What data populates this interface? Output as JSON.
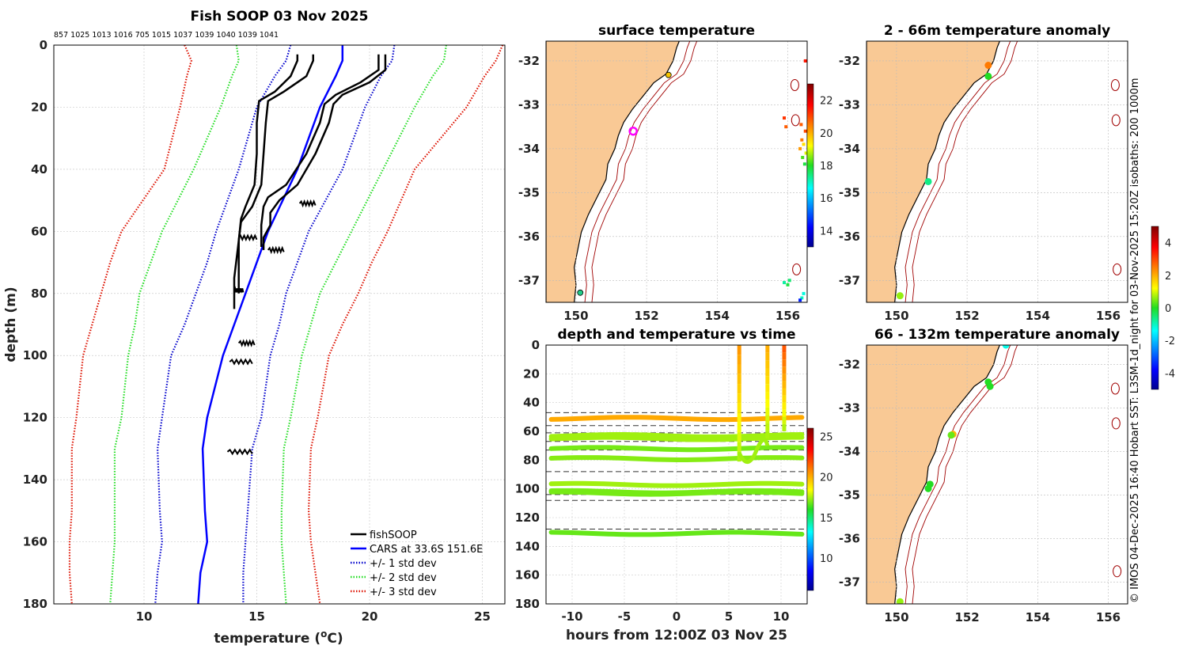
{
  "title": "Fish SOOP 03 Nov 2025",
  "depth_ids": "857 1025 1013 1016 705 1015 1037 1039 1040 1039 1041",
  "side_text": "© IMOS 04-Dec-2025 16:40 Hobart SST: L3SM-1d_night for 03-Nov-2025 15:20Z isobaths: 200  1000m",
  "colors": {
    "fish": "#000000",
    "cars": "#0000ff",
    "sd1": "#0000cc",
    "sd2": "#22dd22",
    "sd3": "#dd1100",
    "land": "#f9c995",
    "isobath": "#a00000"
  },
  "chart_data": [
    {
      "type": "line",
      "name": "profile",
      "xlabel": "temperature (°C)",
      "ylabel": "depth (m)",
      "xlim": [
        6,
        26
      ],
      "ylim": [
        180,
        0
      ],
      "xticks": [
        10,
        15,
        20,
        25
      ],
      "yticks": [
        0,
        20,
        40,
        60,
        80,
        100,
        120,
        140,
        160,
        180
      ],
      "legend": [
        "fishSOOP",
        "CARS at 33.6S 151.6E",
        "+/- 1 std dev",
        "+/- 2 std dev",
        "+/- 3 std dev"
      ],
      "legend_position": "bottom-right",
      "cars": {
        "temp": [
          18.8,
          18.8,
          18.5,
          17.8,
          16.8,
          15.5,
          15.0,
          14.5,
          14.0,
          13.5,
          12.8,
          12.6,
          12.7,
          12.8,
          12.5,
          12.4
        ],
        "depth": [
          0,
          5,
          10,
          20,
          40,
          60,
          70,
          80,
          90,
          100,
          120,
          130,
          150,
          160,
          170,
          180
        ]
      },
      "sd1_low": {
        "temp": [
          16.5,
          16.3,
          15.8,
          15.0,
          14.2,
          13.2,
          12.8,
          12.3,
          11.8,
          11.2,
          10.8,
          10.6,
          10.7,
          10.8,
          10.6,
          10.5
        ],
        "depth": [
          0,
          5,
          10,
          20,
          40,
          60,
          70,
          80,
          90,
          100,
          120,
          130,
          150,
          160,
          170,
          180
        ]
      },
      "sd1_high": {
        "temp": [
          21.1,
          21.0,
          20.5,
          19.8,
          18.8,
          17.3,
          16.8,
          16.3,
          16.0,
          15.6,
          15.2,
          14.8,
          14.6,
          14.5,
          14.4,
          14.4
        ],
        "depth": [
          0,
          5,
          10,
          20,
          40,
          60,
          70,
          80,
          90,
          100,
          120,
          130,
          150,
          160,
          170,
          180
        ]
      },
      "sd2_low": {
        "temp": [
          14.1,
          14.2,
          13.9,
          13.4,
          12.2,
          10.8,
          10.3,
          9.8,
          9.6,
          9.3,
          9.0,
          8.7,
          8.7,
          8.7,
          8.6,
          8.5
        ],
        "depth": [
          0,
          5,
          10,
          20,
          40,
          60,
          70,
          80,
          90,
          100,
          120,
          130,
          150,
          160,
          170,
          180
        ]
      },
      "sd2_high": {
        "temp": [
          23.4,
          23.3,
          22.8,
          22.0,
          20.6,
          19.2,
          18.5,
          17.8,
          17.4,
          17.0,
          16.5,
          16.2,
          16.1,
          16.1,
          16.2,
          16.3
        ],
        "depth": [
          0,
          5,
          10,
          20,
          40,
          60,
          70,
          80,
          90,
          100,
          120,
          130,
          150,
          160,
          170,
          180
        ]
      },
      "sd3_low": {
        "temp": [
          11.8,
          12.1,
          11.9,
          11.6,
          10.9,
          9.0,
          8.5,
          8.1,
          7.7,
          7.3,
          7.0,
          6.8,
          6.8,
          6.7,
          6.7,
          6.8
        ],
        "depth": [
          0,
          5,
          10,
          20,
          40,
          60,
          70,
          80,
          90,
          100,
          120,
          130,
          150,
          160,
          170,
          180
        ]
      },
      "sd3_high": {
        "temp": [
          25.9,
          25.6,
          25.1,
          24.3,
          22.0,
          20.8,
          20.1,
          19.5,
          18.8,
          18.2,
          17.7,
          17.4,
          17.3,
          17.4,
          17.6,
          17.8
        ],
        "depth": [
          0,
          5,
          10,
          20,
          40,
          60,
          70,
          80,
          90,
          100,
          120,
          130,
          150,
          160,
          170,
          180
        ]
      },
      "fish_profiles": [
        {
          "temp": [
            17.5,
            17.5,
            17.2,
            16.2,
            15.5,
            15.4,
            15.3,
            15.2,
            14.8,
            14.3,
            14.2,
            14.0,
            14.0
          ],
          "depth": [
            3,
            5,
            10,
            15,
            18,
            25,
            35,
            45,
            52,
            57,
            63,
            75,
            85
          ]
        },
        {
          "temp": [
            16.8,
            16.8,
            16.5,
            15.8,
            15.1,
            15.0,
            15.0,
            14.9,
            14.5,
            14.3,
            14.2,
            14.2
          ],
          "depth": [
            3,
            5,
            10,
            15,
            18,
            25,
            35,
            45,
            52,
            56,
            63,
            80
          ]
        },
        {
          "temp": [
            20.7,
            20.7,
            20.0,
            18.8,
            18.4,
            18.2,
            17.6,
            16.8,
            16.0,
            15.6,
            15.6,
            15.3,
            15.3
          ],
          "depth": [
            3,
            8,
            12,
            16,
            19,
            25,
            35,
            45,
            50,
            54,
            58,
            62,
            66
          ]
        },
        {
          "temp": [
            20.4,
            20.4,
            19.6,
            18.5,
            18.0,
            17.8,
            17.2,
            16.3,
            15.5,
            15.3,
            15.2,
            15.2
          ],
          "depth": [
            3,
            8,
            12,
            16,
            19,
            25,
            35,
            45,
            49,
            52,
            58,
            65
          ]
        }
      ]
    },
    {
      "type": "heatmap",
      "name": "surface_map",
      "title": "surface temperature",
      "xticks": [
        150,
        152,
        154,
        156
      ],
      "yticks": [
        -32,
        -33,
        -34,
        -35,
        -36,
        -37
      ],
      "colorbar_ticks": [
        14,
        16,
        18,
        20,
        22
      ]
    },
    {
      "type": "scatter",
      "name": "depth_time",
      "title": "depth and temperature vs time",
      "xlabel": "hours from 12:00Z 03 Nov 25",
      "xlim": [
        -12.5,
        12.5
      ],
      "ylim": [
        180,
        0
      ],
      "xticks": [
        -10,
        -5,
        0,
        5,
        10
      ],
      "yticks": [
        0,
        20,
        40,
        60,
        80,
        100,
        120,
        140,
        160,
        180
      ],
      "colorbar_ticks": [
        10,
        15,
        20,
        25
      ],
      "tracks": [
        {
          "depth": 51,
          "temp": 20.5
        },
        {
          "depth": 63,
          "temp": 17.5
        },
        {
          "depth": 65,
          "temp": 17.5
        },
        {
          "depth": 72,
          "temp": 17.0
        },
        {
          "depth": 79,
          "temp": 17.2
        },
        {
          "depth": 97,
          "temp": 17.5
        },
        {
          "depth": 102,
          "temp": 17.0
        },
        {
          "depth": 103,
          "temp": 17.0
        },
        {
          "depth": 131,
          "temp": 16.8
        }
      ],
      "hauls": [
        {
          "hour": 6.0,
          "max_depth": 81,
          "surface_temp": 21.0
        },
        {
          "hour": 8.7,
          "max_depth": 65,
          "surface_temp": 20.5
        },
        {
          "hour": 10.3,
          "max_depth": 60,
          "surface_temp": 22.5
        }
      ],
      "dashed_depths": [
        47,
        56,
        61,
        67,
        73,
        88,
        104,
        108,
        128
      ]
    },
    {
      "type": "scatter",
      "name": "anomaly_shallow",
      "title": "2 - 66m temperature anomaly",
      "xticks": [
        150,
        152,
        154,
        156
      ],
      "yticks": [
        -32,
        -33,
        -34,
        -35,
        -36,
        -37
      ],
      "points": [
        {
          "lon": 152.6,
          "lat": -32.1,
          "anom": 2.0
        },
        {
          "lon": 152.6,
          "lat": -32.35,
          "anom": 0.0
        },
        {
          "lon": 150.9,
          "lat": -34.75,
          "anom": -0.5
        },
        {
          "lon": 150.1,
          "lat": -37.35,
          "anom": 0.5
        }
      ]
    },
    {
      "type": "scatter",
      "name": "anomaly_deep",
      "title": "66 - 132m temperature anomaly",
      "xticks": [
        150,
        152,
        154,
        156
      ],
      "yticks": [
        -32,
        -33,
        -34,
        -35,
        -36,
        -37
      ],
      "colorbar_ticks": [
        -4,
        -2,
        0,
        2,
        4
      ],
      "points": [
        {
          "lon": 153.1,
          "lat": -31.55,
          "anom": -1.0
        },
        {
          "lon": 152.6,
          "lat": -32.4,
          "anom": 0.0
        },
        {
          "lon": 152.65,
          "lat": -32.5,
          "anom": 0.0
        },
        {
          "lon": 151.6,
          "lat": -33.6,
          "anom": 1.5
        },
        {
          "lon": 151.55,
          "lat": -33.62,
          "anom": 0.3
        },
        {
          "lon": 150.95,
          "lat": -34.75,
          "anom": 0.0
        },
        {
          "lon": 150.9,
          "lat": -34.85,
          "anom": 0.0
        },
        {
          "lon": 150.1,
          "lat": -37.45,
          "anom": 0.5
        }
      ]
    }
  ]
}
